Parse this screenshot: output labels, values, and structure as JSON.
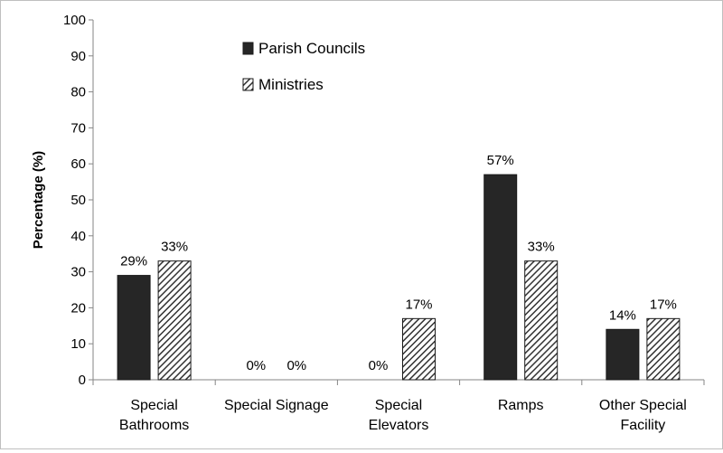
{
  "chart_data": {
    "type": "bar",
    "categories": [
      [
        "Special",
        "Bathrooms"
      ],
      [
        "Special Signage"
      ],
      [
        "Special",
        "Elevators"
      ],
      [
        "Ramps"
      ],
      [
        "Other Special",
        "Facility"
      ]
    ],
    "series": [
      {
        "name": "Parish Councils",
        "values": [
          29,
          0,
          0,
          57,
          14
        ],
        "labels": [
          "29%",
          "0%",
          "0%",
          "57%",
          "14%"
        ],
        "fill": "solid",
        "color": "#262626"
      },
      {
        "name": "Ministries",
        "values": [
          33,
          0,
          17,
          33,
          17
        ],
        "labels": [
          "33%",
          "0%",
          "17%",
          "33%",
          "17%"
        ],
        "fill": "hatched",
        "color": "#262626"
      }
    ],
    "ylabel": "Percentage (%)",
    "ylim": [
      0,
      100
    ],
    "yticks": [
      0,
      10,
      20,
      30,
      40,
      50,
      60,
      70,
      80,
      90,
      100
    ],
    "grid": false,
    "legend_position": "top-center"
  }
}
